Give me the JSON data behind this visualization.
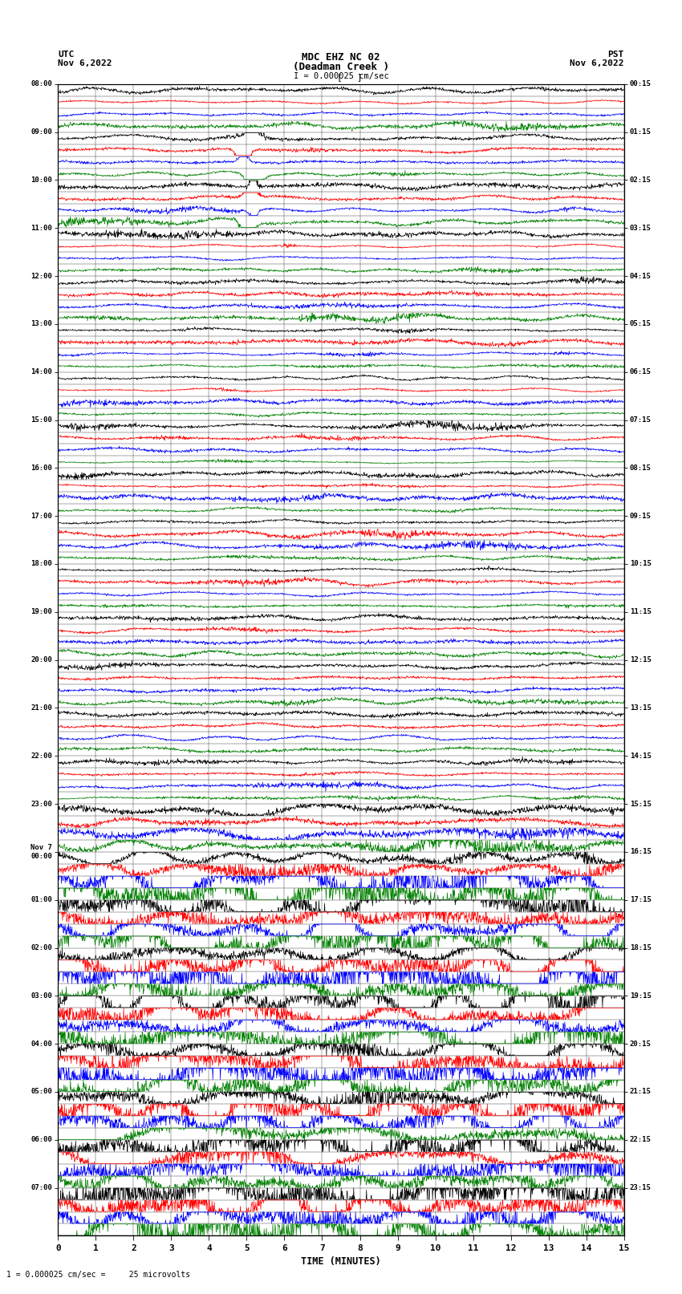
{
  "title_line1": "MDC EHZ NC 02",
  "title_line2": "(Deadman Creek )",
  "title_line3": "I = 0.000025 cm/sec",
  "utc_label": "UTC",
  "utc_date": "Nov 6,2022",
  "pst_label": "PST",
  "pst_date": "Nov 6,2022",
  "xlabel": "TIME (MINUTES)",
  "footer": "1 = 0.000025 cm/sec =     25 microvolts",
  "xlim": [
    0,
    15
  ],
  "xticks": [
    0,
    1,
    2,
    3,
    4,
    5,
    6,
    7,
    8,
    9,
    10,
    11,
    12,
    13,
    14,
    15
  ],
  "colors": [
    "black",
    "red",
    "blue",
    "green"
  ],
  "utc_labels": [
    "08:00",
    "09:00",
    "10:00",
    "11:00",
    "12:00",
    "13:00",
    "14:00",
    "15:00",
    "16:00",
    "17:00",
    "18:00",
    "19:00",
    "20:00",
    "21:00",
    "22:00",
    "23:00",
    "Nov 7\n00:00",
    "01:00",
    "02:00",
    "03:00",
    "04:00",
    "05:00",
    "06:00",
    "07:00"
  ],
  "pst_labels": [
    "00:15",
    "01:15",
    "02:15",
    "03:15",
    "04:15",
    "05:15",
    "06:15",
    "07:15",
    "08:15",
    "09:15",
    "10:15",
    "11:15",
    "12:15",
    "13:15",
    "14:15",
    "15:15",
    "16:15",
    "17:15",
    "18:15",
    "19:15",
    "20:15",
    "21:15",
    "22:15",
    "23:15"
  ],
  "n_hours": 24,
  "n_traces_per_hour": 4,
  "n_points": 1500,
  "background_color": "white"
}
